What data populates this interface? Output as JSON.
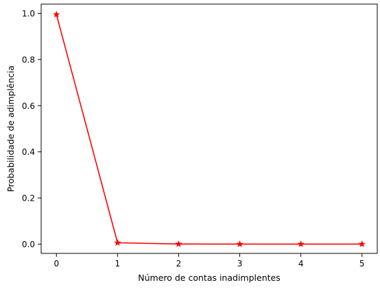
{
  "chart_data": {
    "type": "line",
    "title": "",
    "xlabel": "Número de contas inadimplentes",
    "ylabel": "Probabilidade de adimplência",
    "x": [
      0,
      1,
      2,
      3,
      4,
      5
    ],
    "series": [
      {
        "values": [
          0.995,
          0.006,
          0.0005,
          0.0003,
          0.0002,
          0.0001
        ],
        "color": "#ff0000",
        "marker": "star"
      }
    ],
    "xlim": [
      -0.25,
      5.25
    ],
    "ylim": [
      -0.04,
      1.04
    ],
    "xticks": [
      0,
      1,
      2,
      3,
      4,
      5
    ],
    "xtick_labels": [
      "0",
      "1",
      "2",
      "3",
      "4",
      "5"
    ],
    "yticks": [
      0.0,
      0.2,
      0.4,
      0.6,
      0.8,
      1.0
    ],
    "ytick_labels": [
      "0.0",
      "0.2",
      "0.4",
      "0.6",
      "0.8",
      "1.0"
    ],
    "grid": false,
    "legend": "none"
  }
}
